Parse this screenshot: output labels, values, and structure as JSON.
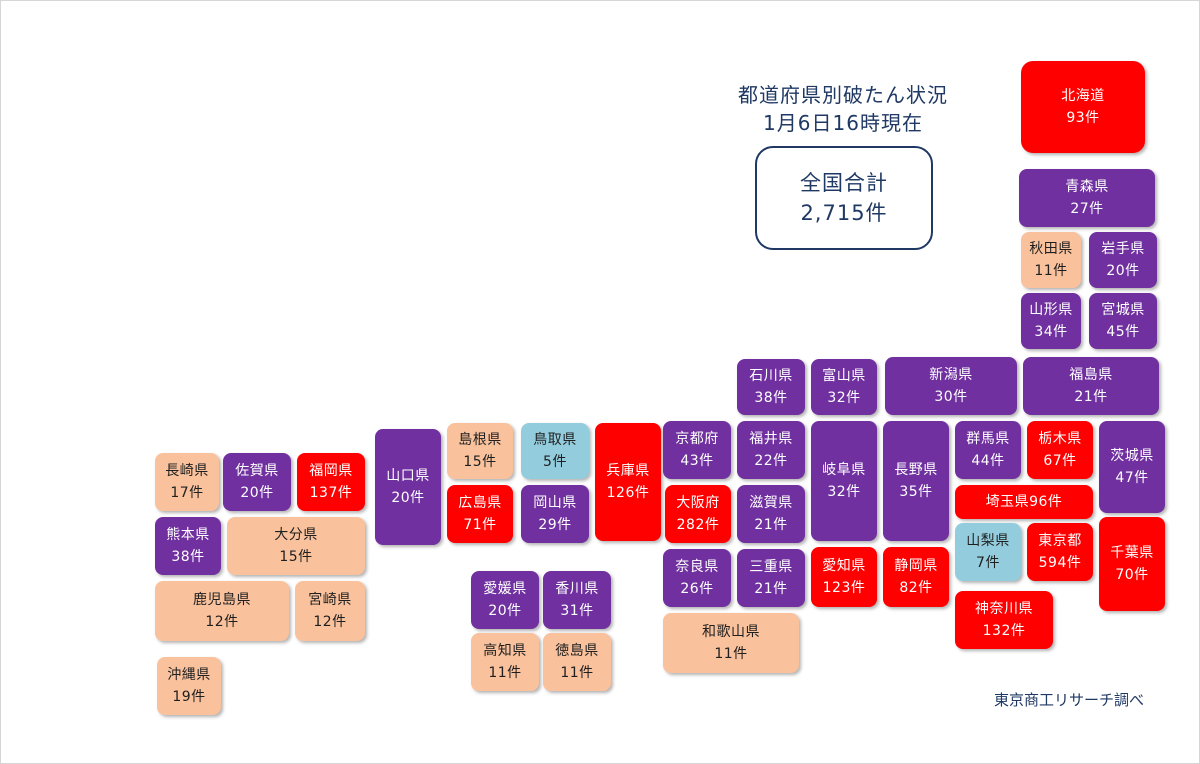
{
  "header": {
    "title": "都道府県別破たん状況",
    "date": "1月6日16時現在"
  },
  "summary": {
    "label": "全国合計",
    "value": "2,715件"
  },
  "source": "東京商工リサーチ調べ",
  "colors": {
    "red": "#ff0000",
    "purple": "#7030a0",
    "peach": "#f9c19c",
    "blue": "#93cddd",
    "text_navy": "#1f3864"
  },
  "prefectures": {
    "hokkaido": {
      "name": "北海道",
      "count": "93件",
      "category": "red"
    },
    "aomori": {
      "name": "青森県",
      "count": "27件",
      "category": "purple"
    },
    "akita": {
      "name": "秋田県",
      "count": "11件",
      "category": "peach"
    },
    "iwate": {
      "name": "岩手県",
      "count": "20件",
      "category": "purple"
    },
    "yamagata": {
      "name": "山形県",
      "count": "34件",
      "category": "purple"
    },
    "miyagi": {
      "name": "宮城県",
      "count": "45件",
      "category": "purple"
    },
    "ishikawa": {
      "name": "石川県",
      "count": "38件",
      "category": "purple"
    },
    "toyama": {
      "name": "富山県",
      "count": "32件",
      "category": "purple"
    },
    "niigata": {
      "name": "新潟県",
      "count": "30件",
      "category": "purple"
    },
    "fukushima": {
      "name": "福島県",
      "count": "21件",
      "category": "purple"
    },
    "yamaguchi": {
      "name": "山口県",
      "count": "20件",
      "category": "purple"
    },
    "shimane": {
      "name": "島根県",
      "count": "15件",
      "category": "peach"
    },
    "tottori": {
      "name": "鳥取県",
      "count": "5件",
      "category": "blue"
    },
    "hyogo": {
      "name": "兵庫県",
      "count": "126件",
      "category": "red"
    },
    "kyoto": {
      "name": "京都府",
      "count": "43件",
      "category": "purple"
    },
    "fukui": {
      "name": "福井県",
      "count": "22件",
      "category": "purple"
    },
    "gifu": {
      "name": "岐阜県",
      "count": "32件",
      "category": "purple"
    },
    "nagano": {
      "name": "長野県",
      "count": "35件",
      "category": "purple"
    },
    "gunma": {
      "name": "群馬県",
      "count": "44件",
      "category": "purple"
    },
    "tochigi": {
      "name": "栃木県",
      "count": "67件",
      "category": "red"
    },
    "ibaraki": {
      "name": "茨城県",
      "count": "47件",
      "category": "purple"
    },
    "saitama": {
      "name": "埼玉県",
      "count": "96件",
      "category": "red"
    },
    "nagasaki": {
      "name": "長崎県",
      "count": "17件",
      "category": "peach"
    },
    "saga": {
      "name": "佐賀県",
      "count": "20件",
      "category": "purple"
    },
    "fukuoka": {
      "name": "福岡県",
      "count": "137件",
      "category": "red"
    },
    "hiroshima": {
      "name": "広島県",
      "count": "71件",
      "category": "red"
    },
    "okayama": {
      "name": "岡山県",
      "count": "29件",
      "category": "purple"
    },
    "osaka": {
      "name": "大阪府",
      "count": "282件",
      "category": "red"
    },
    "shiga": {
      "name": "滋賀県",
      "count": "21件",
      "category": "purple"
    },
    "kumamoto": {
      "name": "熊本県",
      "count": "38件",
      "category": "purple"
    },
    "oita": {
      "name": "大分県",
      "count": "15件",
      "category": "peach"
    },
    "yamanashi": {
      "name": "山梨県",
      "count": "7件",
      "category": "blue"
    },
    "tokyo": {
      "name": "東京都",
      "count": "594件",
      "category": "red"
    },
    "chiba": {
      "name": "千葉県",
      "count": "70件",
      "category": "red"
    },
    "nara": {
      "name": "奈良県",
      "count": "26件",
      "category": "purple"
    },
    "mie": {
      "name": "三重県",
      "count": "21件",
      "category": "purple"
    },
    "aichi": {
      "name": "愛知県",
      "count": "123件",
      "category": "red"
    },
    "shizuoka": {
      "name": "静岡県",
      "count": "82件",
      "category": "red"
    },
    "kanagawa": {
      "name": "神奈川県",
      "count": "132件",
      "category": "red"
    },
    "kagoshima": {
      "name": "鹿児島県",
      "count": "12件",
      "category": "peach"
    },
    "miyazaki": {
      "name": "宮崎県",
      "count": "12件",
      "category": "peach"
    },
    "ehime": {
      "name": "愛媛県",
      "count": "20件",
      "category": "purple"
    },
    "kagawa": {
      "name": "香川県",
      "count": "31件",
      "category": "purple"
    },
    "wakayama": {
      "name": "和歌山県",
      "count": "11件",
      "category": "peach"
    },
    "kochi": {
      "name": "高知県",
      "count": "11件",
      "category": "peach"
    },
    "tokushima": {
      "name": "徳島県",
      "count": "11件",
      "category": "peach"
    },
    "okinawa": {
      "name": "沖縄県",
      "count": "19件",
      "category": "peach"
    }
  }
}
